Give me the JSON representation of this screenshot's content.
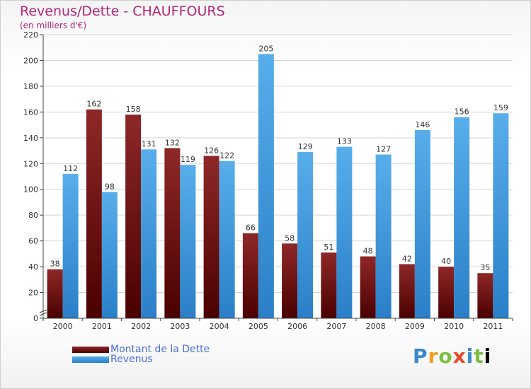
{
  "header": {
    "title": "Revenus/Dette - CHAUFFOURS",
    "subtitle": "(en milliers d'€)"
  },
  "legend": {
    "items": [
      {
        "label": "Montant de la Dette",
        "color": "#6b0a0a"
      },
      {
        "label": "Revenus",
        "color": "#4aa3e6"
      }
    ]
  },
  "brand": {
    "text": "Proxiti"
  },
  "colors": {
    "debt_top": "#8e2828",
    "debt_bottom": "#4a0000",
    "rev_top": "#58aeea",
    "rev_bottom": "#2a7fc8",
    "axis": "#444444",
    "grid": "#d6d6d6",
    "label": "#333333"
  },
  "chart_data": {
    "type": "bar",
    "title": "Revenus/Dette - CHAUFFOURS",
    "ylabel": "(en milliers d'€)",
    "xlabel": "",
    "ylim": [
      0,
      220
    ],
    "ytick_step": 20,
    "yticks": [
      0,
      20,
      40,
      60,
      80,
      100,
      120,
      140,
      160,
      180,
      200,
      220
    ],
    "categories": [
      "2000",
      "2001",
      "2002",
      "2003",
      "2004",
      "2005",
      "2006",
      "2007",
      "2008",
      "2009",
      "2010",
      "2011"
    ],
    "series": [
      {
        "name": "Montant de la Dette",
        "values": [
          38,
          162,
          158,
          132,
          126,
          66,
          58,
          51,
          48,
          42,
          40,
          35
        ]
      },
      {
        "name": "Revenus",
        "values": [
          112,
          98,
          131,
          119,
          122,
          205,
          129,
          133,
          127,
          146,
          156,
          159
        ]
      }
    ],
    "legend_position": "bottom-left",
    "grid": true
  }
}
